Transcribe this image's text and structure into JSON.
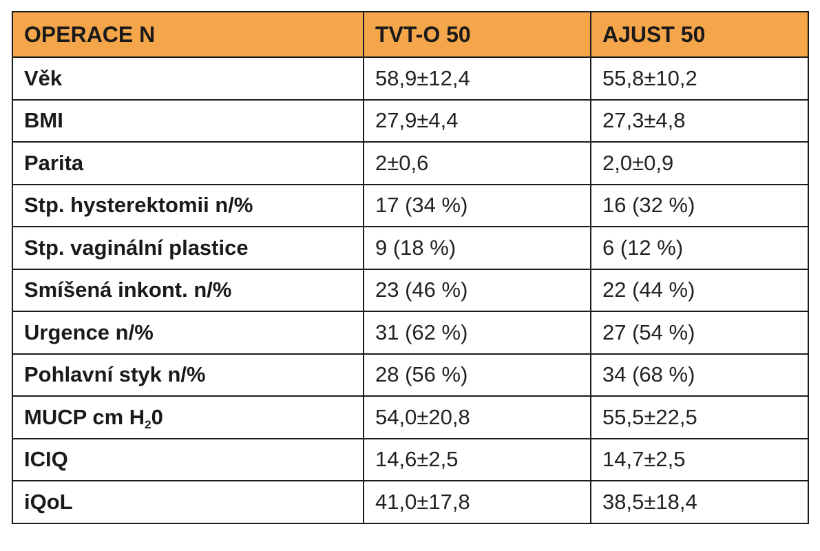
{
  "table": {
    "headers": [
      "OPERACE N",
      "TVT-O 50",
      "AJUST 50"
    ],
    "rows": [
      [
        "Věk",
        "58,9±12,4",
        "55,8±10,2"
      ],
      [
        "BMI",
        "27,9±4,4",
        "27,3±4,8"
      ],
      [
        "Parita",
        "2±0,6",
        "2,0±0,9"
      ],
      [
        "Stp. hysterektomii n/%",
        "17 (34 %)",
        "16 (32 %)"
      ],
      [
        "Stp. vaginální plastice",
        "9 (18 %)",
        "6 (12 %)"
      ],
      [
        "Smíšená inkont. n/%",
        "23 (46 %)",
        "22 (44 %)"
      ],
      [
        "Urgence n/%",
        "31 (62 %)",
        "27 (54 %)"
      ],
      [
        "Pohlavní styk n/%",
        "28 (56 %)",
        "34 (68 %)"
      ],
      [
        "MUCP cm H",
        "54,0±20,8",
        "55,5±22,5"
      ],
      [
        "ICIQ",
        "14,6±2,5",
        "14,7±2,5"
      ],
      [
        "iQoL",
        "41,0±17,8",
        "38,5±18,4"
      ]
    ],
    "mucp_subscript": "2",
    "mucp_suffix": "0"
  },
  "colors": {
    "header_bg": "#f5a54a",
    "border": "#1a1a1a",
    "text": "#1a1a1a"
  }
}
